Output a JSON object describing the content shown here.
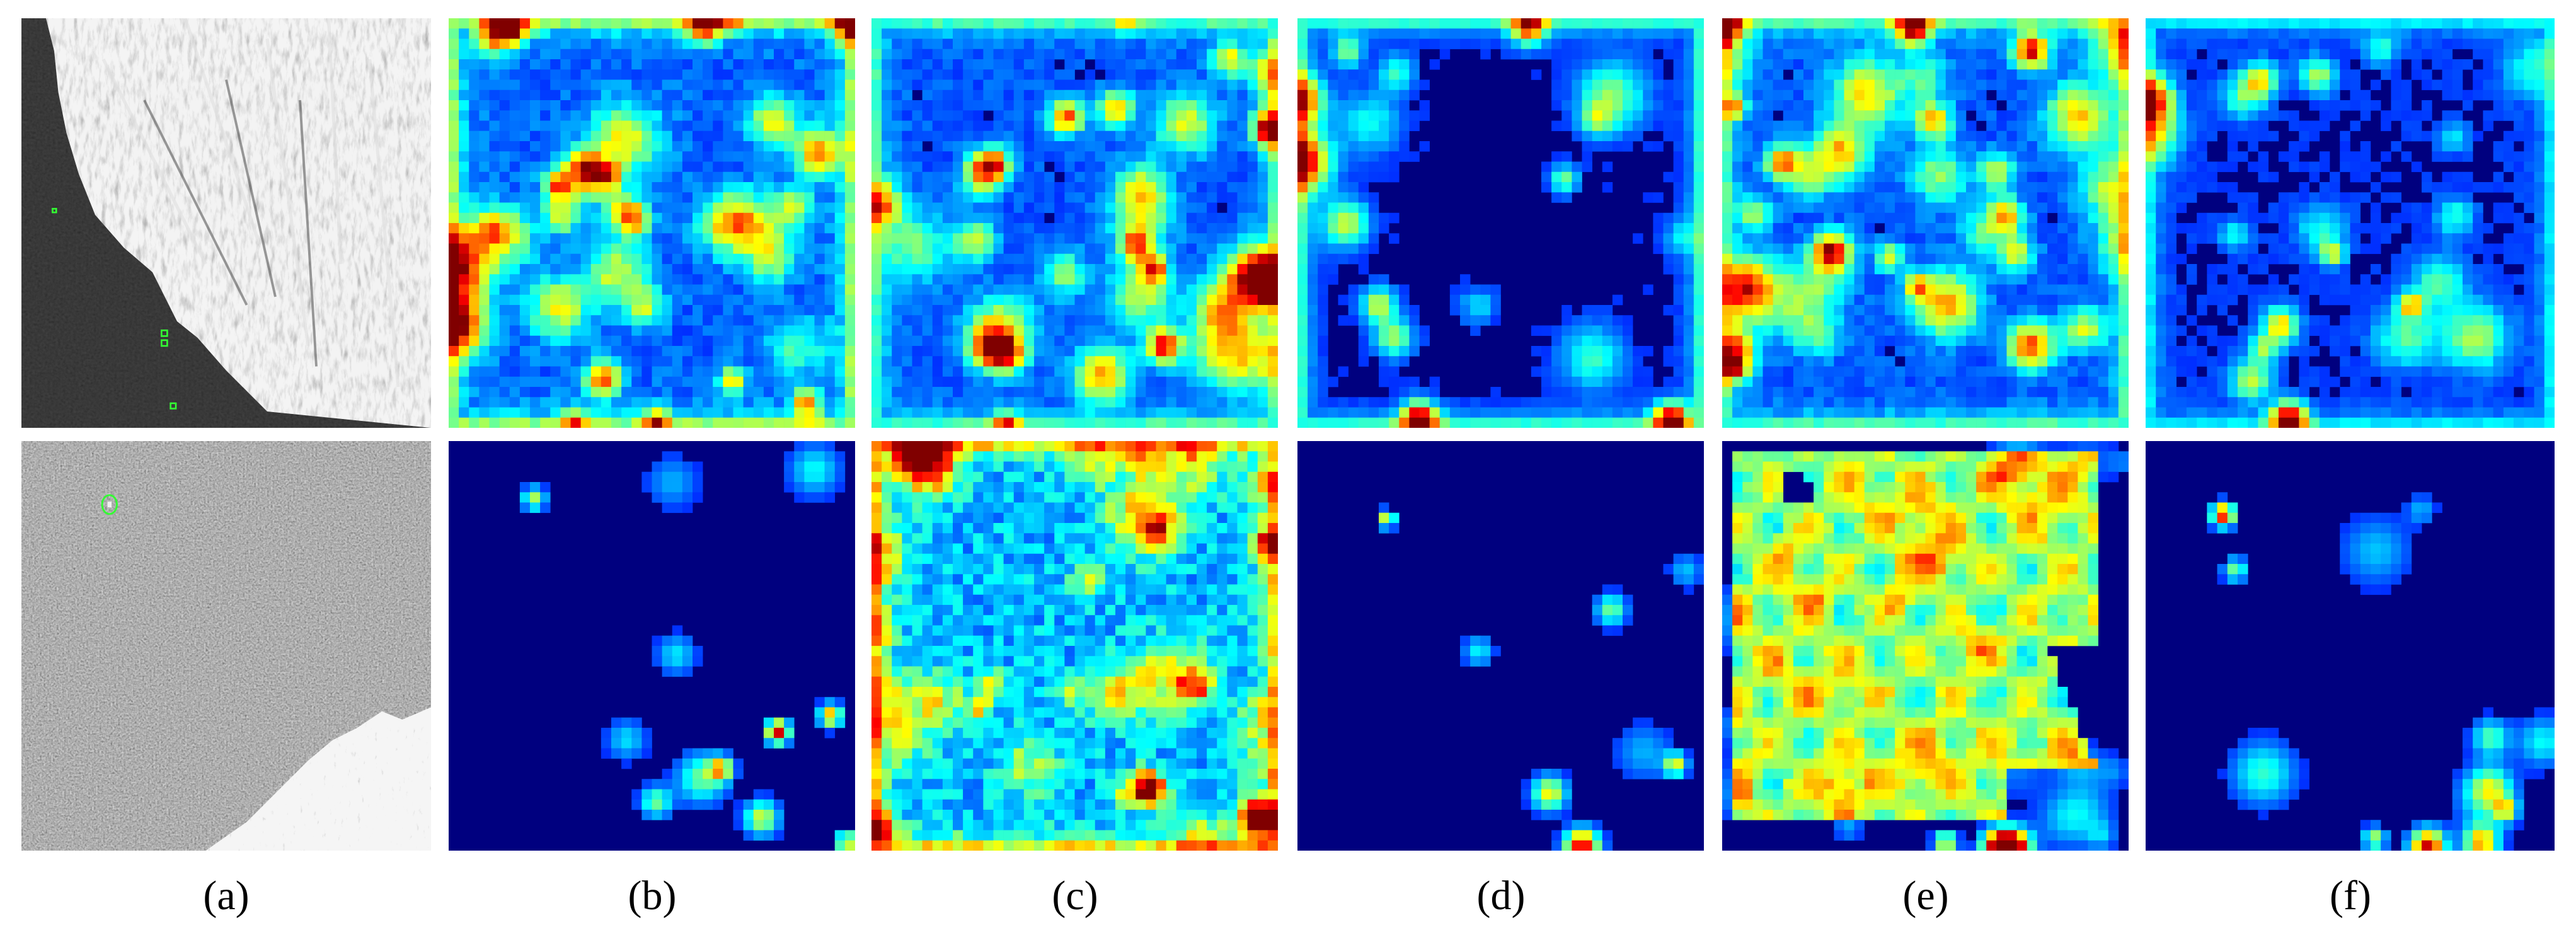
{
  "figure": {
    "labels": [
      "(a)",
      "(b)",
      "(c)",
      "(d)",
      "(e)",
      "(f)"
    ],
    "rows": [
      {
        "sar": {
          "content": "coastline with bright rugged land at top-right and dark sea at bottom-left",
          "box_color": "#33ff33",
          "box_count": 4
        },
        "heatmaps": [
          {
            "label": "(b)",
            "background": "#00007f"
          },
          {
            "label": "(c)",
            "background": "#00007f"
          },
          {
            "label": "(d)",
            "background": "#00007f"
          },
          {
            "label": "(e)",
            "background": "#00007f"
          },
          {
            "label": "(f)",
            "background": "#00007f"
          }
        ]
      },
      {
        "sar": {
          "content": "open sea speckle with bright land in the bottom-right corner",
          "box_color": "#33ff33",
          "box_count": 1
        },
        "heatmaps": [
          {
            "label": "(b)",
            "background": "#00007f"
          },
          {
            "label": "(c)",
            "background": "#00007f"
          },
          {
            "label": "(d)",
            "background": "#00007f"
          },
          {
            "label": "(e)",
            "background": "#00007f"
          },
          {
            "label": "(f)",
            "background": "#00007f"
          }
        ]
      }
    ],
    "colormap": "jet",
    "colors": {
      "jet_low": "#00007f",
      "jet_blue": "#0000ff",
      "jet_cyan": "#00ffff",
      "jet_yellow": "#ffff00",
      "jet_red": "#ff0000",
      "sar_dark": "#1a1a1a",
      "sar_light": "#c8c8c8"
    }
  }
}
